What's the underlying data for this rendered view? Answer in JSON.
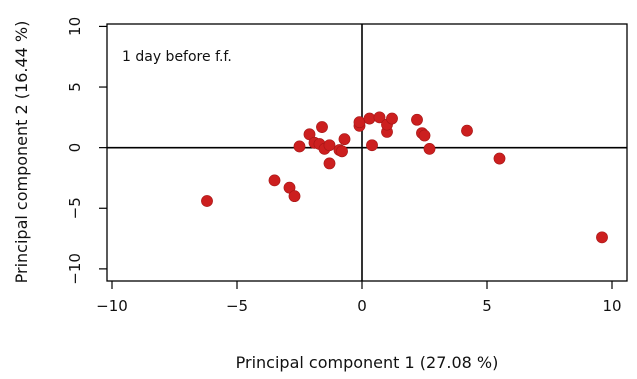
{
  "chart_data": {
    "type": "scatter",
    "annotation": "1 day before f.f.",
    "xlabel": "Principal component 1 (27.08 %)",
    "ylabel": "Principal component 2 (16.44 %)",
    "xlim": [
      -10.2,
      10.6
    ],
    "ylim": [
      -11,
      10.2
    ],
    "xticks": [
      -10,
      -5,
      0,
      5,
      10
    ],
    "yticks": [
      -10,
      -5,
      0,
      5,
      10
    ],
    "xtick_labels": [
      "−10",
      "−5",
      "0",
      "5",
      "10"
    ],
    "ytick_labels": [
      "−10",
      "−5",
      "0",
      "5",
      "10"
    ],
    "reference_lines": {
      "x": 0,
      "y": 0
    },
    "grid": false,
    "point_color": "#cc1f1f",
    "points": [
      {
        "x": -6.2,
        "y": -4.4
      },
      {
        "x": -3.5,
        "y": -2.7
      },
      {
        "x": -2.9,
        "y": -3.3
      },
      {
        "x": -2.7,
        "y": -4.0
      },
      {
        "x": -2.5,
        "y": 0.1
      },
      {
        "x": -2.1,
        "y": 1.1
      },
      {
        "x": -1.9,
        "y": 0.4
      },
      {
        "x": -1.7,
        "y": 0.3
      },
      {
        "x": -1.6,
        "y": 1.7
      },
      {
        "x": -1.5,
        "y": -0.1
      },
      {
        "x": -1.3,
        "y": 0.2
      },
      {
        "x": -1.3,
        "y": -1.3
      },
      {
        "x": -0.9,
        "y": -0.2
      },
      {
        "x": -0.8,
        "y": -0.3
      },
      {
        "x": -0.7,
        "y": 0.7
      },
      {
        "x": -0.1,
        "y": 1.8
      },
      {
        "x": -0.1,
        "y": 2.1
      },
      {
        "x": 0.3,
        "y": 2.4
      },
      {
        "x": 0.4,
        "y": 0.2
      },
      {
        "x": 0.7,
        "y": 2.5
      },
      {
        "x": 1.0,
        "y": 1.3
      },
      {
        "x": 1.0,
        "y": 1.9
      },
      {
        "x": 1.2,
        "y": 2.4
      },
      {
        "x": 2.2,
        "y": 2.3
      },
      {
        "x": 2.4,
        "y": 1.2
      },
      {
        "x": 2.5,
        "y": 1.0
      },
      {
        "x": 2.7,
        "y": -0.1
      },
      {
        "x": 4.2,
        "y": 1.4
      },
      {
        "x": 5.5,
        "y": -0.9
      },
      {
        "x": 9.6,
        "y": -7.4
      }
    ]
  }
}
